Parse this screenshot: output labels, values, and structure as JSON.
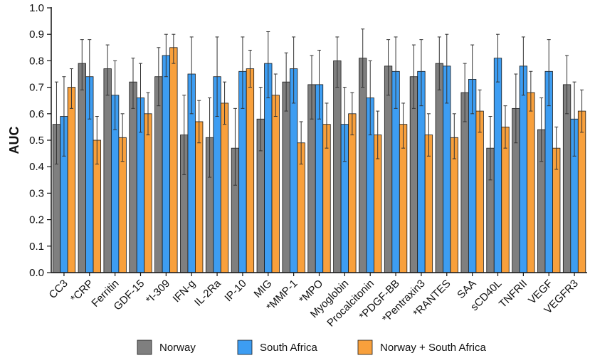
{
  "chart_data": {
    "type": "bar",
    "title": "",
    "xlabel": "",
    "ylabel": "AUC",
    "ylim": [
      0,
      1.0
    ],
    "yticks": [
      "0.0",
      "0.1",
      "0.2",
      "0.3",
      "0.4",
      "0.5",
      "0.6",
      "0.7",
      "0.8",
      "0.9",
      "1.0"
    ],
    "grid": false,
    "legend_position": "bottom",
    "categories": [
      "CC3",
      "*CRP",
      "Ferritin",
      "GDF-15",
      "*I-309",
      "IFN-g",
      "IL-2Ra",
      "IP-10",
      "MIG",
      "*MMP-1",
      "*MPO",
      "Myoglobin",
      "Procalcitonin",
      "*PDGF-BB",
      "*Pentraxin3",
      "*RANTES",
      "SAA",
      "sCD40L",
      "TNFRII",
      "VEGF",
      "VEGFR3"
    ],
    "series": [
      {
        "name": "Norway",
        "color": "#7f7f7f",
        "values": [
          0.56,
          0.79,
          0.77,
          0.72,
          0.74,
          0.52,
          0.51,
          0.47,
          0.58,
          0.72,
          0.71,
          0.8,
          0.81,
          0.78,
          0.74,
          0.79,
          0.68,
          0.47,
          0.62,
          0.54,
          0.71
        ],
        "err_low": [
          0.41,
          0.69,
          0.67,
          0.62,
          0.63,
          0.37,
          0.36,
          0.33,
          0.46,
          0.61,
          0.58,
          0.7,
          0.7,
          0.67,
          0.62,
          0.69,
          0.57,
          0.35,
          0.49,
          0.42,
          0.6
        ],
        "err_high": [
          0.72,
          0.88,
          0.86,
          0.81,
          0.85,
          0.67,
          0.66,
          0.62,
          0.7,
          0.83,
          0.82,
          0.89,
          0.92,
          0.88,
          0.86,
          0.89,
          0.79,
          0.59,
          0.75,
          0.66,
          0.82
        ]
      },
      {
        "name": "South Africa",
        "color": "#3d9df2",
        "values": [
          0.59,
          0.74,
          0.67,
          0.66,
          0.82,
          0.75,
          0.74,
          0.76,
          0.79,
          0.77,
          0.71,
          0.56,
          0.66,
          0.76,
          0.76,
          0.78,
          0.73,
          0.81,
          0.78,
          0.76,
          0.58
        ],
        "err_low": [
          0.44,
          0.58,
          0.54,
          0.53,
          0.74,
          0.6,
          0.59,
          0.62,
          0.66,
          0.64,
          0.58,
          0.42,
          0.52,
          0.62,
          0.63,
          0.64,
          0.6,
          0.72,
          0.67,
          0.63,
          0.44
        ],
        "err_high": [
          0.74,
          0.88,
          0.8,
          0.79,
          0.9,
          0.89,
          0.89,
          0.89,
          0.91,
          0.89,
          0.84,
          0.7,
          0.8,
          0.89,
          0.88,
          0.9,
          0.86,
          0.9,
          0.89,
          0.88,
          0.72
        ]
      },
      {
        "name": "Norway + South Africa",
        "color": "#f8a03c",
        "values": [
          0.7,
          0.5,
          0.51,
          0.6,
          0.85,
          0.57,
          0.64,
          0.77,
          0.67,
          0.49,
          0.56,
          0.6,
          0.52,
          0.56,
          0.52,
          0.51,
          0.61,
          0.55,
          0.68,
          0.47,
          0.61
        ],
        "err_low": [
          0.62,
          0.41,
          0.42,
          0.52,
          0.79,
          0.49,
          0.56,
          0.7,
          0.59,
          0.41,
          0.47,
          0.52,
          0.43,
          0.47,
          0.44,
          0.43,
          0.53,
          0.47,
          0.61,
          0.39,
          0.53
        ],
        "err_high": [
          0.77,
          0.59,
          0.6,
          0.68,
          0.9,
          0.65,
          0.72,
          0.84,
          0.75,
          0.57,
          0.64,
          0.68,
          0.61,
          0.64,
          0.6,
          0.6,
          0.69,
          0.63,
          0.76,
          0.55,
          0.69
        ]
      }
    ]
  }
}
